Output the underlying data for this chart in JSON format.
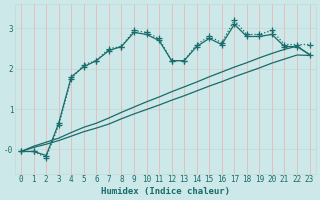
{
  "xlabel": "Humidex (Indice chaleur)",
  "background_color": "#cce8e8",
  "line_color": "#1a6b6b",
  "grid_color_h": "#c8d8d8",
  "grid_color_v": "#e8b8b8",
  "x": [
    0,
    1,
    2,
    3,
    4,
    5,
    6,
    7,
    8,
    9,
    10,
    11,
    12,
    13,
    14,
    15,
    16,
    17,
    18,
    19,
    20,
    21,
    22,
    23
  ],
  "y_jagged": [
    -0.05,
    -0.05,
    -0.2,
    0.6,
    1.75,
    2.1,
    2.2,
    2.5,
    2.55,
    2.95,
    2.9,
    2.75,
    2.2,
    2.2,
    2.6,
    2.8,
    2.65,
    3.2,
    2.85,
    2.85,
    2.95,
    2.6,
    2.6,
    2.6
  ],
  "y_smooth": [
    -0.05,
    -0.05,
    -0.15,
    0.65,
    1.8,
    2.05,
    2.2,
    2.45,
    2.55,
    2.9,
    2.85,
    2.7,
    2.2,
    2.2,
    2.55,
    2.75,
    2.6,
    3.1,
    2.8,
    2.8,
    2.85,
    2.55,
    2.55,
    2.35
  ],
  "y_linear1": [
    -0.05,
    0.08,
    0.18,
    0.28,
    0.42,
    0.55,
    0.65,
    0.78,
    0.92,
    1.05,
    1.18,
    1.3,
    1.43,
    1.55,
    1.67,
    1.8,
    1.92,
    2.04,
    2.15,
    2.27,
    2.38,
    2.48,
    2.56,
    2.35
  ],
  "y_linear2": [
    -0.05,
    0.05,
    0.13,
    0.22,
    0.33,
    0.44,
    0.53,
    0.63,
    0.76,
    0.88,
    0.99,
    1.1,
    1.22,
    1.33,
    1.45,
    1.57,
    1.68,
    1.8,
    1.91,
    2.02,
    2.14,
    2.24,
    2.34,
    2.33
  ],
  "yticks": [
    0,
    1,
    2,
    3
  ],
  "ylim": [
    -0.6,
    3.6
  ],
  "xlim": [
    -0.5,
    23.5
  ]
}
